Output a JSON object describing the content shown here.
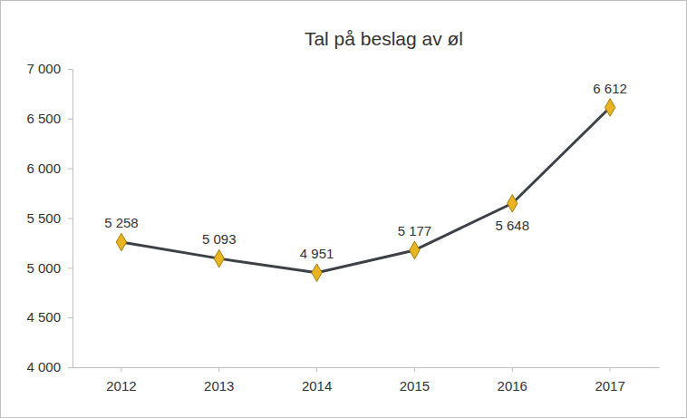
{
  "chart_data": {
    "type": "line",
    "title": "Tal på beslag av øl",
    "categories": [
      "2012",
      "2013",
      "2014",
      "2015",
      "2016",
      "2017"
    ],
    "values": [
      5258,
      5093,
      4951,
      5177,
      5648,
      6612
    ],
    "value_labels": [
      "5 258",
      "5 093",
      "4 951",
      "5 177",
      "5 648",
      "6 612"
    ],
    "data_labels": true,
    "color": "#3c4147",
    "marker": "diamond",
    "ylim": [
      4000,
      7000
    ],
    "yticks": [
      {
        "value": 4000,
        "label": "4 000"
      },
      {
        "value": 4500,
        "label": "4 500"
      },
      {
        "value": 5000,
        "label": "5 000"
      },
      {
        "value": 5500,
        "label": "5 500"
      },
      {
        "value": 6000,
        "label": "6 000"
      },
      {
        "value": 6500,
        "label": "6 500"
      },
      {
        "value": 7000,
        "label": "7 000"
      }
    ],
    "grid": false
  }
}
